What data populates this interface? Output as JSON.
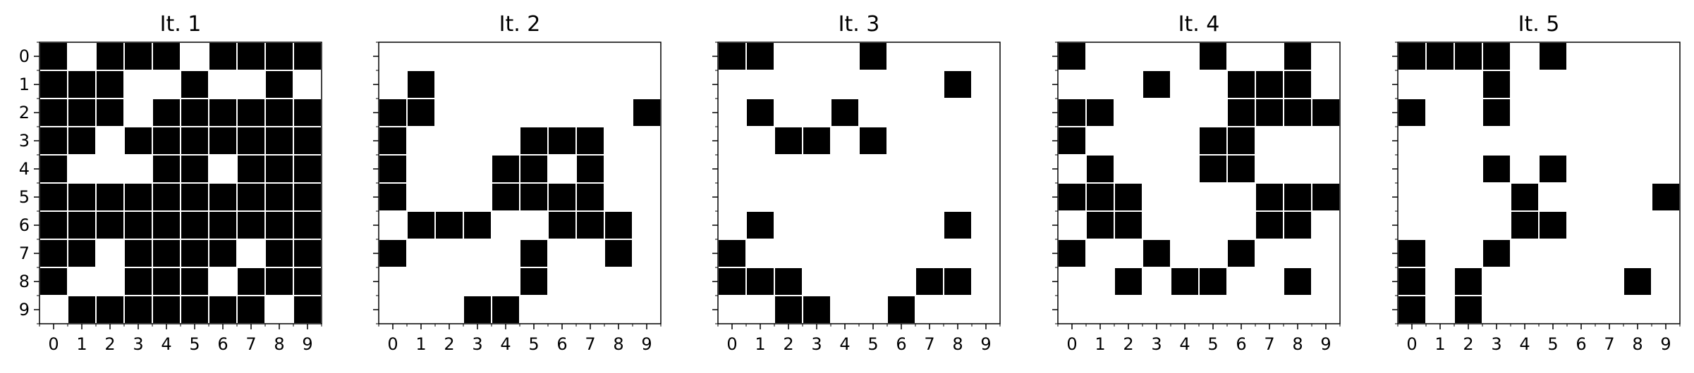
{
  "chart_data": {
    "type": "heatmap",
    "grid_size": 10,
    "colors": {
      "filled": "#000000",
      "empty": "#ffffff",
      "cell_separator": "#ffffff"
    },
    "x_ticks": [
      "0",
      "1",
      "2",
      "3",
      "4",
      "5",
      "6",
      "7",
      "8",
      "9"
    ],
    "y_ticks": [
      "0",
      "1",
      "2",
      "3",
      "4",
      "5",
      "6",
      "7",
      "8",
      "9"
    ],
    "grid_lines": false,
    "panels": [
      {
        "title": "It. 1",
        "cells": [
          [
            1,
            0,
            1,
            1,
            1,
            0,
            1,
            1,
            1,
            1
          ],
          [
            1,
            1,
            1,
            0,
            0,
            1,
            0,
            0,
            1,
            0
          ],
          [
            1,
            1,
            1,
            0,
            1,
            1,
            1,
            1,
            1,
            1
          ],
          [
            1,
            1,
            0,
            1,
            1,
            1,
            1,
            1,
            1,
            1
          ],
          [
            1,
            0,
            0,
            0,
            1,
            1,
            0,
            1,
            1,
            1
          ],
          [
            1,
            1,
            1,
            1,
            1,
            1,
            1,
            1,
            1,
            1
          ],
          [
            1,
            1,
            1,
            1,
            1,
            1,
            1,
            1,
            1,
            1
          ],
          [
            1,
            1,
            0,
            1,
            1,
            1,
            1,
            0,
            1,
            1
          ],
          [
            1,
            0,
            0,
            1,
            1,
            1,
            0,
            1,
            1,
            1
          ],
          [
            0,
            1,
            1,
            1,
            1,
            1,
            1,
            1,
            0,
            1
          ]
        ]
      },
      {
        "title": "It. 2",
        "cells": [
          [
            0,
            0,
            0,
            0,
            0,
            0,
            0,
            0,
            0,
            0
          ],
          [
            0,
            1,
            0,
            0,
            0,
            0,
            0,
            0,
            0,
            0
          ],
          [
            1,
            1,
            0,
            0,
            0,
            0,
            0,
            0,
            0,
            1
          ],
          [
            1,
            0,
            0,
            0,
            0,
            1,
            1,
            1,
            0,
            0
          ],
          [
            1,
            0,
            0,
            0,
            1,
            1,
            0,
            1,
            0,
            0
          ],
          [
            1,
            0,
            0,
            0,
            1,
            1,
            1,
            1,
            0,
            0
          ],
          [
            0,
            1,
            1,
            1,
            0,
            0,
            1,
            1,
            1,
            0
          ],
          [
            1,
            0,
            0,
            0,
            0,
            1,
            0,
            0,
            1,
            0
          ],
          [
            0,
            0,
            0,
            0,
            0,
            1,
            0,
            0,
            0,
            0
          ],
          [
            0,
            0,
            0,
            1,
            1,
            0,
            0,
            0,
            0,
            0
          ]
        ]
      },
      {
        "title": "It. 3",
        "cells": [
          [
            1,
            1,
            0,
            0,
            0,
            1,
            0,
            0,
            0,
            0
          ],
          [
            0,
            0,
            0,
            0,
            0,
            0,
            0,
            0,
            1,
            0
          ],
          [
            0,
            1,
            0,
            0,
            1,
            0,
            0,
            0,
            0,
            0
          ],
          [
            0,
            0,
            1,
            1,
            0,
            1,
            0,
            0,
            0,
            0
          ],
          [
            0,
            0,
            0,
            0,
            0,
            0,
            0,
            0,
            0,
            0
          ],
          [
            0,
            0,
            0,
            0,
            0,
            0,
            0,
            0,
            0,
            0
          ],
          [
            0,
            1,
            0,
            0,
            0,
            0,
            0,
            0,
            1,
            0
          ],
          [
            1,
            0,
            0,
            0,
            0,
            0,
            0,
            0,
            0,
            0
          ],
          [
            1,
            1,
            1,
            0,
            0,
            0,
            0,
            1,
            1,
            0
          ],
          [
            0,
            0,
            1,
            1,
            0,
            0,
            1,
            0,
            0,
            0
          ]
        ]
      },
      {
        "title": "It. 4",
        "cells": [
          [
            1,
            0,
            0,
            0,
            0,
            1,
            0,
            0,
            1,
            0
          ],
          [
            0,
            0,
            0,
            1,
            0,
            0,
            1,
            1,
            1,
            0
          ],
          [
            1,
            1,
            0,
            0,
            0,
            0,
            1,
            1,
            1,
            1
          ],
          [
            1,
            0,
            0,
            0,
            0,
            1,
            1,
            0,
            0,
            0
          ],
          [
            0,
            1,
            0,
            0,
            0,
            1,
            1,
            0,
            0,
            0
          ],
          [
            1,
            1,
            1,
            0,
            0,
            0,
            0,
            1,
            1,
            1
          ],
          [
            0,
            1,
            1,
            0,
            0,
            0,
            0,
            1,
            1,
            0
          ],
          [
            1,
            0,
            0,
            1,
            0,
            0,
            1,
            0,
            0,
            0
          ],
          [
            0,
            0,
            1,
            0,
            1,
            1,
            0,
            0,
            1,
            0
          ],
          [
            0,
            0,
            0,
            0,
            0,
            0,
            0,
            0,
            0,
            0
          ]
        ]
      },
      {
        "title": "It. 5",
        "cells": [
          [
            1,
            1,
            1,
            1,
            0,
            1,
            0,
            0,
            0,
            0
          ],
          [
            0,
            0,
            0,
            1,
            0,
            0,
            0,
            0,
            0,
            0
          ],
          [
            1,
            0,
            0,
            1,
            0,
            0,
            0,
            0,
            0,
            0
          ],
          [
            0,
            0,
            0,
            0,
            0,
            0,
            0,
            0,
            0,
            0
          ],
          [
            0,
            0,
            0,
            1,
            0,
            1,
            0,
            0,
            0,
            0
          ],
          [
            0,
            0,
            0,
            0,
            1,
            0,
            0,
            0,
            0,
            1
          ],
          [
            0,
            0,
            0,
            0,
            1,
            1,
            0,
            0,
            0,
            0
          ],
          [
            1,
            0,
            0,
            1,
            0,
            0,
            0,
            0,
            0,
            0
          ],
          [
            1,
            0,
            1,
            0,
            0,
            0,
            0,
            0,
            1,
            0
          ],
          [
            1,
            0,
            1,
            0,
            0,
            0,
            0,
            0,
            0,
            0
          ]
        ]
      }
    ]
  }
}
